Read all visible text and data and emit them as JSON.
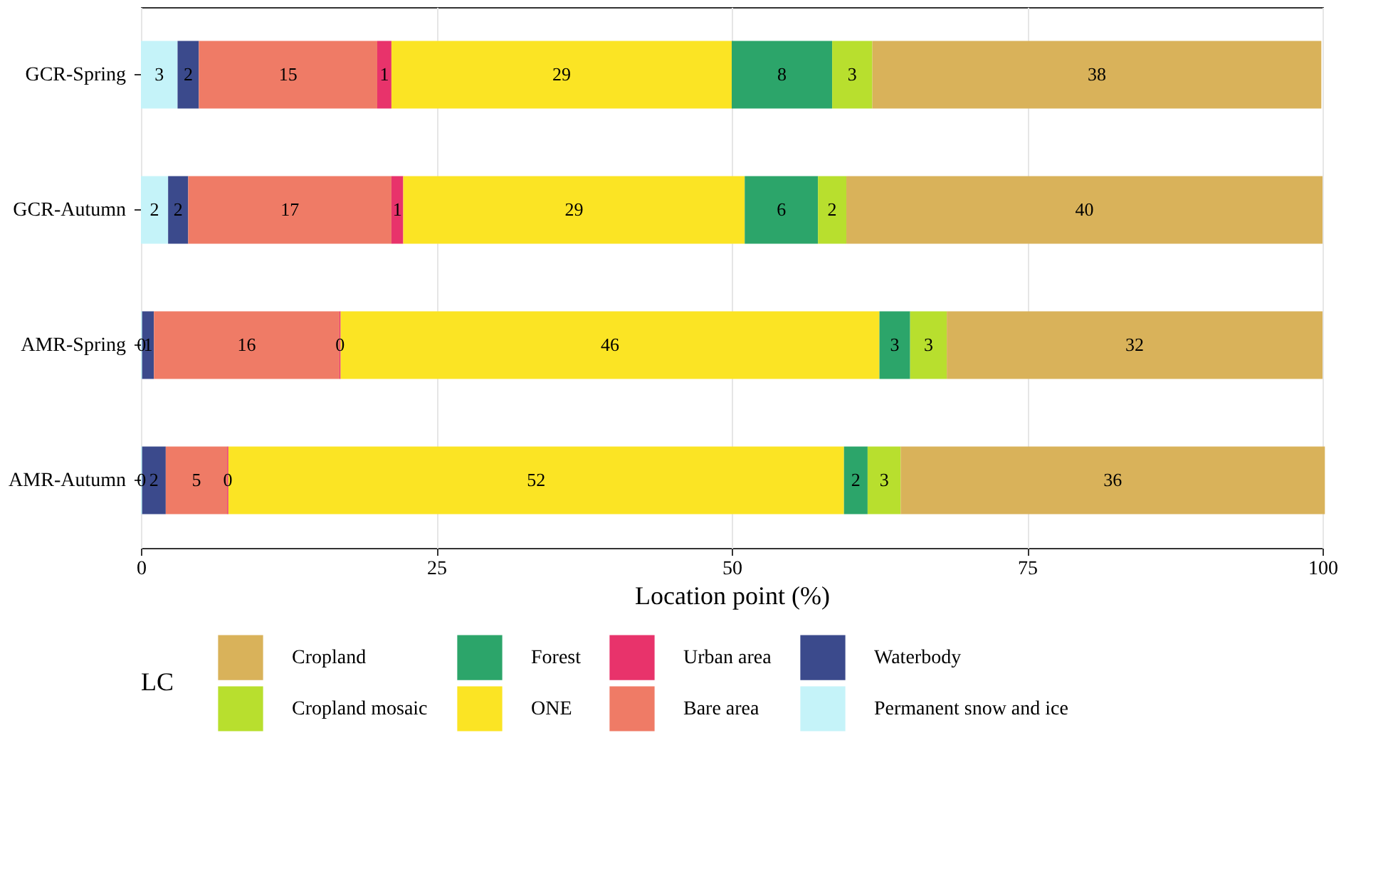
{
  "chart_data": {
    "type": "bar",
    "orientation": "horizontal",
    "stacked": true,
    "categories": [
      "GCR-Spring",
      "GCR-Autumn",
      "AMR-Spring",
      "AMR-Autumn"
    ],
    "xlabel": "Location point (%)",
    "legend_title": "LC",
    "legend": "bottom",
    "grid": "x",
    "xlim": [
      0,
      100
    ],
    "xticks": [
      0,
      25,
      50,
      75,
      100
    ],
    "series": [
      {
        "name": "Permanent snow and ice",
        "color": "#c5f3f9",
        "values": [
          3.1,
          2.3,
          0.1,
          0.1
        ],
        "value_labels": [
          "3",
          "2",
          "0",
          "0"
        ]
      },
      {
        "name": "Waterbody",
        "color": "#3b4a8c",
        "values": [
          1.8,
          1.7,
          1.0,
          2.0
        ],
        "value_labels": [
          "2",
          "2",
          "1",
          "2"
        ]
      },
      {
        "name": "Bare area",
        "color": "#ef7b66",
        "values": [
          15.1,
          17.2,
          15.7,
          5.2
        ],
        "value_labels": [
          "15",
          "17",
          "16",
          "5"
        ]
      },
      {
        "name": "Urban area",
        "color": "#e8336b",
        "values": [
          1.2,
          1.0,
          0.1,
          0.1
        ],
        "value_labels": [
          "1",
          "1",
          "0",
          "0"
        ]
      },
      {
        "name": "ONE",
        "color": "#fbe424",
        "values": [
          28.8,
          28.9,
          45.6,
          52.1
        ],
        "value_labels": [
          "29",
          "29",
          "46",
          "52"
        ]
      },
      {
        "name": "Forest",
        "color": "#2ca56a",
        "values": [
          8.5,
          6.2,
          2.6,
          2.0
        ],
        "value_labels": [
          "8",
          "6",
          "3",
          "2"
        ]
      },
      {
        "name": "Cropland mosaic",
        "color": "#b8df2e",
        "values": [
          3.4,
          2.4,
          3.1,
          2.8
        ],
        "value_labels": [
          "3",
          "2",
          "3",
          "3"
        ]
      },
      {
        "name": "Cropland",
        "color": "#d9b25a",
        "values": [
          38.0,
          40.3,
          31.8,
          35.9
        ],
        "value_labels": [
          "38",
          "40",
          "32",
          "36"
        ]
      }
    ]
  }
}
